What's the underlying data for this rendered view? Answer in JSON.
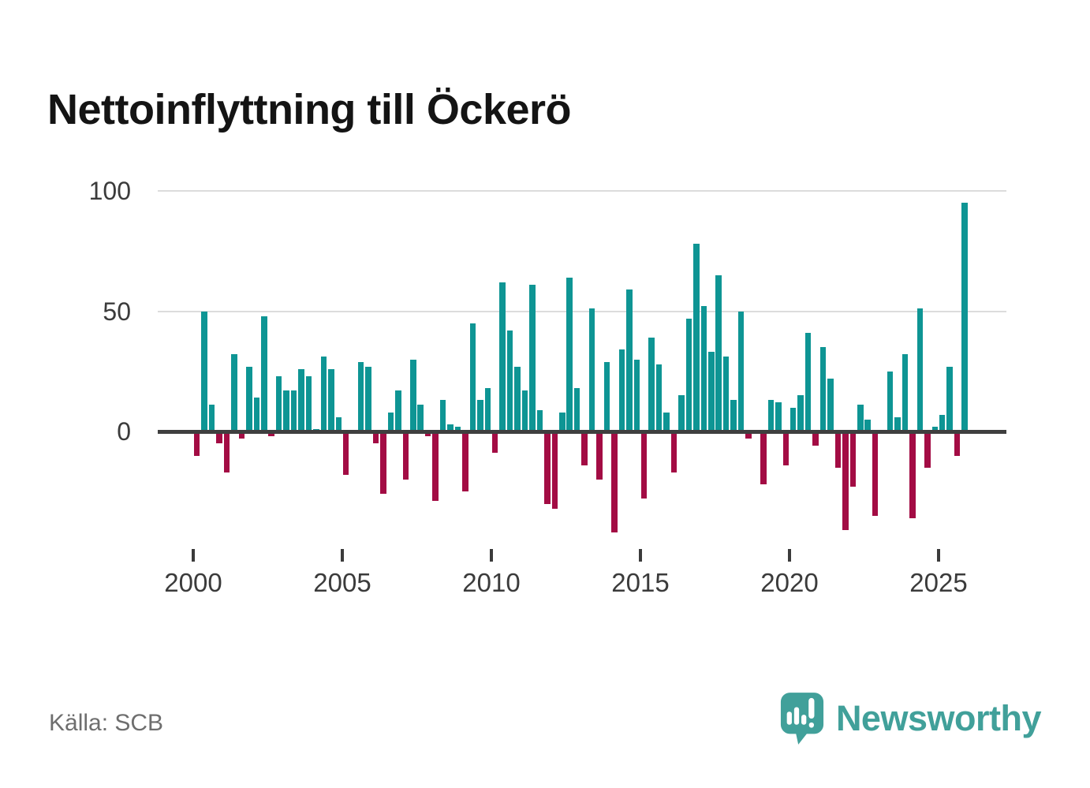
{
  "page": {
    "title": "Nettoinflyttning till Öckerö",
    "source": "Källa: SCB",
    "brand": "Newsworthy"
  },
  "colors": {
    "positive_bar": "#0e9594",
    "negative_bar": "#a30c44",
    "brand_teal": "#41a09a",
    "axis": "#3f3f3f",
    "gridline": "#dcdcdc",
    "tick_label": "#3b3b3b",
    "source_text": "#6e6e6e",
    "title_text": "#141414"
  },
  "chart_data": {
    "type": "bar",
    "title": "Nettoinflyttning till Öckerö",
    "frequency": "quarterly",
    "x_start": "2000-Q1",
    "x_end": "2025-Q4",
    "x_ticks": [
      2000,
      2005,
      2010,
      2015,
      2020,
      2025
    ],
    "y_ticks": [
      0,
      50,
      100
    ],
    "ylim": [
      -50,
      100
    ],
    "grid": "horizontal-at-50-and-100",
    "legend": "none",
    "series": [
      {
        "name": "Nettoinflyttning",
        "values": [
          -10,
          50,
          11,
          -5,
          -17,
          32,
          -3,
          27,
          14,
          48,
          -2,
          23,
          17,
          17,
          26,
          23,
          1,
          31,
          26,
          6,
          -18,
          0,
          29,
          27,
          -5,
          -26,
          8,
          17,
          -20,
          30,
          11,
          -2,
          -29,
          13,
          3,
          2,
          -25,
          45,
          13,
          18,
          -9,
          62,
          42,
          27,
          17,
          61,
          9,
          -30,
          -32,
          8,
          64,
          18,
          -14,
          51,
          -20,
          29,
          -42,
          34,
          59,
          30,
          -28,
          39,
          28,
          8,
          -17,
          15,
          47,
          78,
          52,
          33,
          65,
          31,
          13,
          50,
          -3,
          0,
          -22,
          13,
          12,
          -14,
          10,
          15,
          41,
          -6,
          35,
          22,
          -15,
          -41,
          -23,
          11,
          5,
          -35,
          -1,
          25,
          6,
          32,
          -36,
          51,
          -15,
          2,
          7,
          27,
          -10,
          95
        ]
      }
    ]
  }
}
